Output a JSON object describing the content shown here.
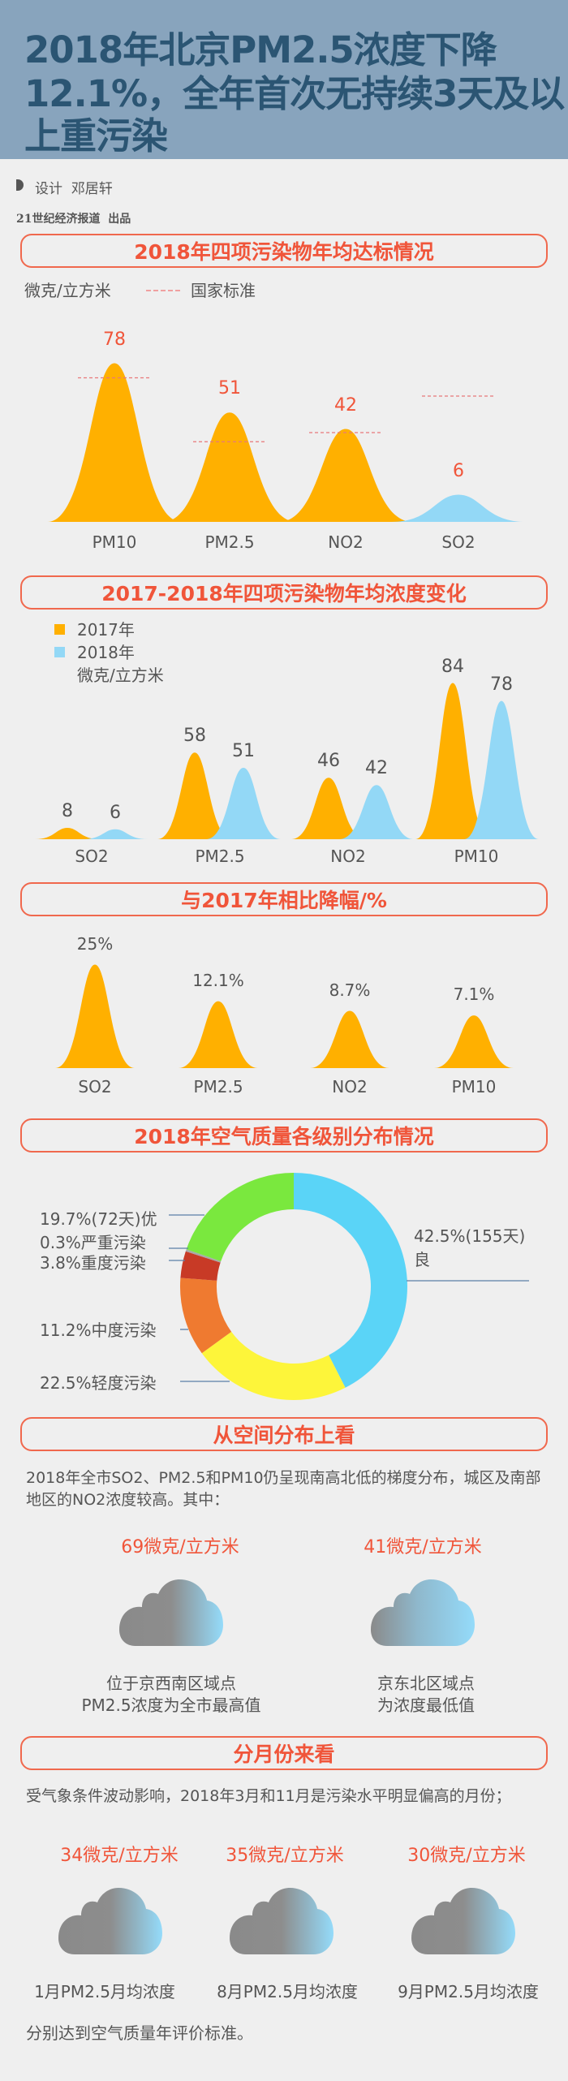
{
  "header": {
    "title_lines": [
      "2018年北京PM2.5浓度下降",
      "12.1%，全年首次无持续3天及以",
      "上重污染"
    ]
  },
  "credits": {
    "designer_label": "设计",
    "designer": "邓居轩",
    "publisher": "21世纪经济报道  出品"
  },
  "sections": {
    "s1_title": "2018年四项污染物年均达标情况",
    "s1_unit": "微克/立方米",
    "s1_legend_standard": "国家标准",
    "s2_title": "2017-2018年四项污染物年均浓度变化",
    "s2_unit": "微克/立方米",
    "s3_title": "与2017年相比降幅/%",
    "s4_title": "2018年空气质量各级别分布情况",
    "s5_title": "从空间分布上看",
    "s5_text": "2018年全市SO2、PM2.5和PM10仍呈现南高北低的梯度分布，城区及南部地区的NO2浓度较高。其中：",
    "s6_title": "分月份来看",
    "s6_text": "受气象条件波动影响，2018年3月和11月是污染水平明显偏高的月份；",
    "s6_footer": "分别达到空气质量年评价标准。"
  },
  "spatial": [
    {
      "value": "69微克/立方米",
      "caption_lines": [
        "位于京西南区域点",
        "PM2.5浓度为全市最高值"
      ]
    },
    {
      "value": "41微克/立方米",
      "caption_lines": [
        "京东北区域点",
        "为浓度最低值"
      ]
    }
  ],
  "monthly": [
    {
      "value": "34微克/立方米",
      "caption": "1月PM2.5月均浓度"
    },
    {
      "value": "35微克/立方米",
      "caption": "8月PM2.5月均浓度"
    },
    {
      "value": "30微克/立方米",
      "caption": "9月PM2.5月均浓度"
    }
  ],
  "colors": {
    "orange": "#ffb000",
    "blue": "#93d8f6",
    "accent_red": "#f0553a",
    "header_bg": "#88a4bd",
    "title": "#2b5573"
  },
  "chart_data": [
    {
      "type": "area",
      "title": "2018年四项污染物年均达标情况",
      "ylabel": "微克/立方米",
      "categories": [
        "PM10",
        "PM2.5",
        "NO2",
        "SO2"
      ],
      "values": [
        78,
        51,
        42,
        6
      ],
      "standard_name": "国家标准",
      "standard": [
        70,
        35,
        40,
        60
      ],
      "colors": [
        "#ffb000",
        "#ffb000",
        "#ffb000",
        "#93d8f6"
      ]
    },
    {
      "type": "area",
      "title": "2017-2018年四项污染物年均浓度变化",
      "ylabel": "微克/立方米",
      "categories": [
        "SO2",
        "PM2.5",
        "NO2",
        "PM10"
      ],
      "series": [
        {
          "name": "2017年",
          "values": [
            8,
            58,
            46,
            84
          ],
          "color": "#ffb000"
        },
        {
          "name": "2018年",
          "values": [
            6,
            51,
            42,
            78
          ],
          "color": "#93d8f6"
        }
      ]
    },
    {
      "type": "area",
      "title": "与2017年相比降幅/%",
      "categories": [
        "SO2",
        "PM2.5",
        "NO2",
        "PM10"
      ],
      "values": [
        25,
        12.1,
        8.7,
        7.1
      ],
      "labels": [
        "25%",
        "12.1%",
        "8.7%",
        "7.1%"
      ],
      "color": "#ffb000"
    },
    {
      "type": "pie",
      "title": "2018年空气质量各级别分布情况",
      "slices": [
        {
          "name": "良",
          "value": 42.5,
          "label": "42.5%(155天)",
          "label2": "良",
          "color": "#5ad4f7"
        },
        {
          "name": "轻度污染",
          "value": 22.5,
          "label": "22.5%轻度污染",
          "color": "#fdf53a"
        },
        {
          "name": "中度污染",
          "value": 11.2,
          "label": "11.2%中度污染",
          "color": "#ef7a30"
        },
        {
          "name": "重度污染",
          "value": 3.8,
          "label": "3.8%重度污染",
          "color": "#c83a26"
        },
        {
          "name": "严重污染",
          "value": 0.3,
          "label": "0.3%严重污染",
          "color": "#a8a8a8"
        },
        {
          "name": "优",
          "value": 19.7,
          "label": "19.7%(72天)优",
          "color": "#7ae83e"
        }
      ]
    }
  ]
}
